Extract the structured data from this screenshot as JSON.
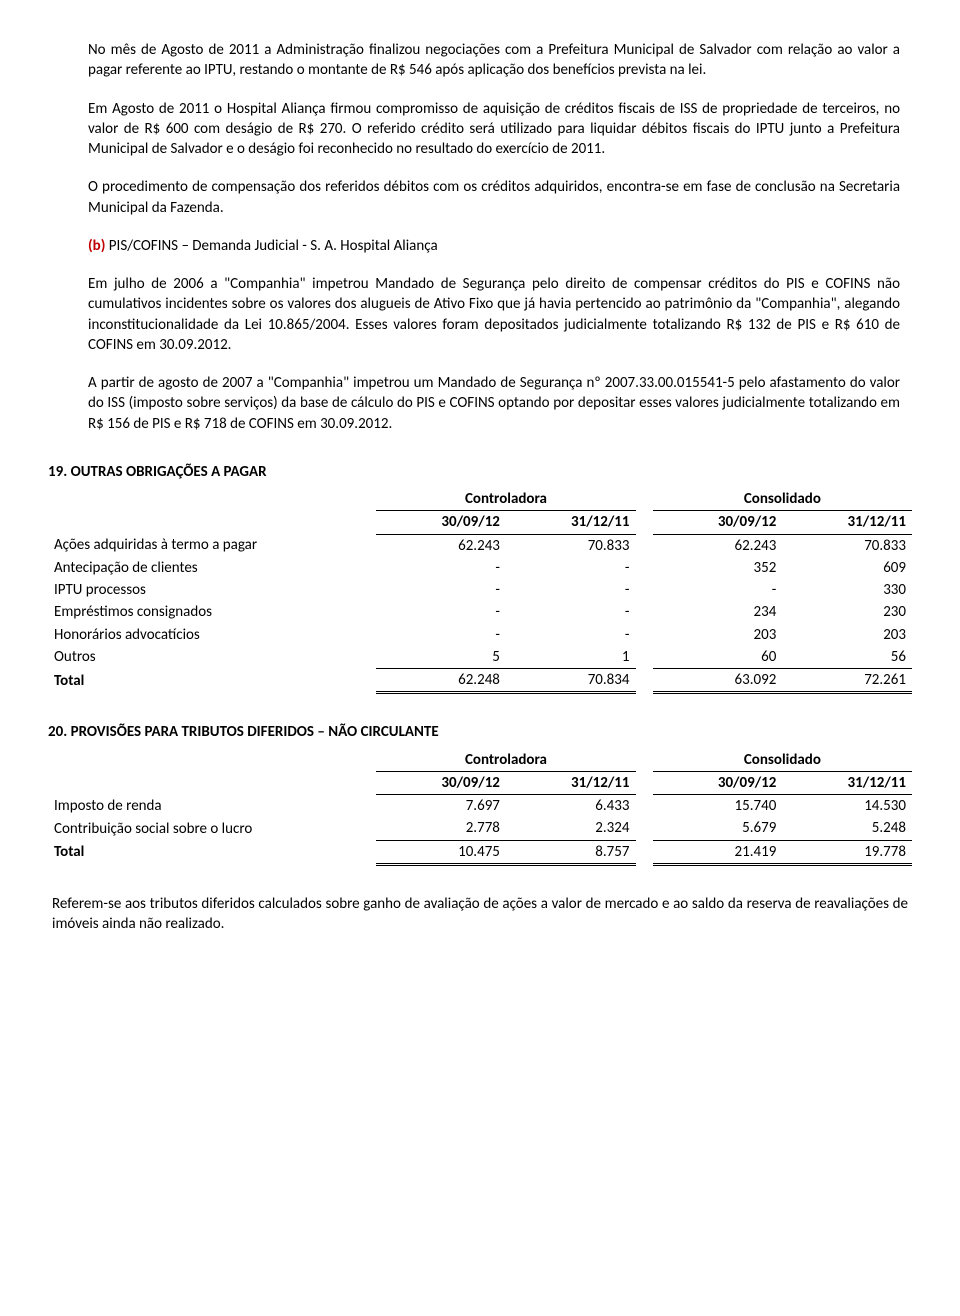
{
  "para1": "No mês de Agosto de 2011 a Administração finalizou negociações com a Prefeitura Municipal de Salvador com relação ao valor a pagar referente ao IPTU, restando o montante de R$ 546 após aplicação dos benefícios prevista na lei.",
  "para2": "Em Agosto de 2011 o Hospital Aliança firmou compromisso de aquisição de créditos fiscais de ISS de propriedade de terceiros, no valor de R$ 600 com deságio de R$ 270. O referido crédito será utilizado para liquidar débitos fiscais do IPTU junto a Prefeitura Municipal de Salvador e o deságio foi reconhecido no resultado do exercício de 2011.",
  "para3": "O procedimento de compensação dos referidos débitos com os créditos adquiridos, encontra-se em fase de conclusão na Secretaria Municipal da Fazenda.",
  "para4_label": "(b)",
  "para4_rest": " PIS/COFINS – Demanda Judicial - S. A. Hospital Aliança",
  "para5": "Em julho de 2006 a \"Companhia\" impetrou Mandado de Segurança pelo direito de compensar créditos do PIS e COFINS não cumulativos incidentes sobre os valores dos alugueis de Ativo Fixo que já havia pertencido ao patrimônio da \"Companhia\", alegando inconstitucionalidade da Lei 10.865/2004. Esses valores foram depositados judicialmente totalizando R$ 132 de PIS e R$ 610 de COFINS em 30.09.2012.",
  "para6": "A partir de agosto de 2007 a \"Companhia\" impetrou um Mandado de Segurança nº 2007.33.00.015541-5 pelo afastamento do valor do ISS (imposto sobre serviços) da base de cálculo do PIS e COFINS optando por depositar esses valores judicialmente totalizando em R$ 156 de PIS e R$ 718 de COFINS em 30.09.2012.",
  "section19": {
    "title": "19. OUTRAS OBRIGAÇÕES A PAGAR",
    "group1": "Controladora",
    "group2": "Consolidado",
    "cols": [
      "30/09/12",
      "31/12/11",
      "30/09/12",
      "31/12/11"
    ],
    "rows": [
      {
        "label": "Ações adquiridas à termo a pagar",
        "v": [
          "62.243",
          "70.833",
          "62.243",
          "70.833"
        ]
      },
      {
        "label": "Antecipação de clientes",
        "v": [
          "-",
          "-",
          "352",
          "609"
        ]
      },
      {
        "label": "IPTU processos",
        "v": [
          "-",
          "-",
          "-",
          "330"
        ]
      },
      {
        "label": "Empréstimos consignados",
        "v": [
          "-",
          "-",
          "234",
          "230"
        ]
      },
      {
        "label": "Honorários advocatícios",
        "v": [
          "-",
          "-",
          "203",
          "203"
        ]
      },
      {
        "label": "Outros",
        "v": [
          "5",
          "1",
          "60",
          "56"
        ]
      }
    ],
    "total_label": "Total",
    "total": [
      "62.248",
      "70.834",
      "63.092",
      "72.261"
    ]
  },
  "section20": {
    "title": "20. PROVISÕES PARA TRIBUTOS DIFERIDOS – NÃO CIRCULANTE",
    "group1": "Controladora",
    "group2": "Consolidado",
    "cols": [
      "30/09/12",
      "31/12/11",
      "30/09/12",
      "31/12/11"
    ],
    "rows": [
      {
        "label": "Imposto de renda",
        "v": [
          "7.697",
          "6.433",
          "15.740",
          "14.530"
        ]
      },
      {
        "label": "Contribuição social sobre o lucro",
        "v": [
          "2.778",
          "2.324",
          "5.679",
          "5.248"
        ]
      }
    ],
    "total_label": "Total",
    "total": [
      "10.475",
      "8.757",
      "21.419",
      "19.778"
    ]
  },
  "footer": "Referem-se aos tributos diferidos calculados sobre ganho de avaliação de ações a valor de mercado e ao saldo da reserva de reavaliações de imóveis ainda não realizado."
}
